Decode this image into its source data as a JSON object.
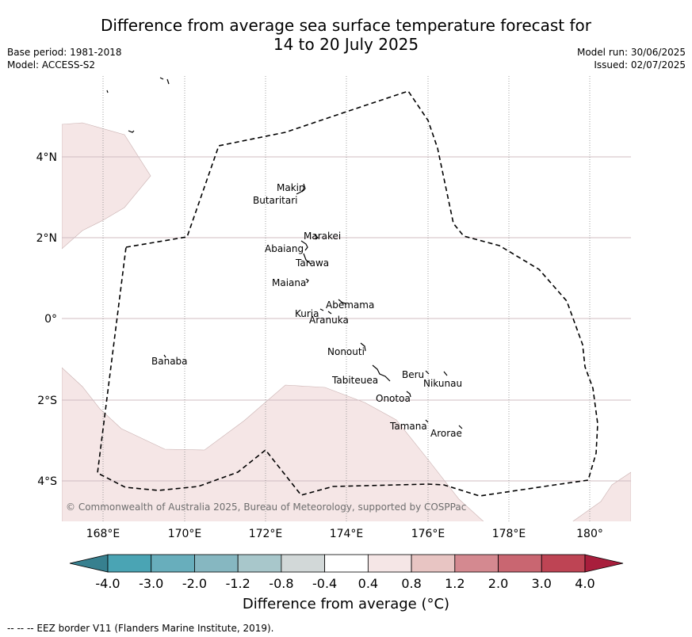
{
  "header": {
    "title_line1": "Difference from average sea surface temperature forecast for",
    "title_line2": "14 to 20 July 2025",
    "base_period": "Base period: 1981-2018",
    "model": "Model: ACCESS-S2",
    "model_run": "Model run: 30/06/2025",
    "issued": "Issued: 02/07/2025"
  },
  "map": {
    "lat_labels": [
      "4°N",
      "2°N",
      "0°",
      "2°S",
      "4°S"
    ],
    "lon_labels": [
      "168°E",
      "170°E",
      "172°E",
      "174°E",
      "176°E",
      "178°E",
      "180°"
    ],
    "islands": [
      "Makin",
      "Butaritari",
      "Marakei",
      "Abaiang",
      "Tarawa",
      "Maiana",
      "Abemama",
      "Kuria",
      "Aranuka",
      "Nonouti",
      "Banaba",
      "Tabiteuea",
      "Beru",
      "Nikunau",
      "Onotoa",
      "Tamana",
      "Arorae"
    ],
    "copyright": "© Commonwealth of Australia 2025, Bureau of Meteorology, supported by COSPPac",
    "anomaly_fill_color": "#f5e6e6",
    "eez_line_color": "#000000"
  },
  "colorbar": {
    "ticks": [
      "-4.0",
      "-3.0",
      "-2.0",
      "-1.2",
      "-0.8",
      "-0.4",
      "0.4",
      "0.8",
      "1.2",
      "2.0",
      "3.0",
      "4.0"
    ],
    "colors": [
      "#37808f",
      "#4aa4b4",
      "#68aebc",
      "#86b7c1",
      "#a8c7cb",
      "#d2d8d8",
      "#ffffff",
      "#f5e6e6",
      "#e8c5c3",
      "#d48990",
      "#c96671",
      "#be4454",
      "#a81e3c"
    ],
    "label": "Difference from average (°C)"
  },
  "footnote": "--  --  -- EEZ border V11 (Flanders Marine Institute, 2019)."
}
